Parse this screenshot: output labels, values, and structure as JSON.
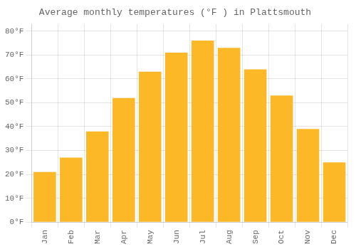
{
  "chart_data": {
    "type": "bar",
    "title": "Average monthly temperatures (°F ) in Plattsmouth",
    "categories": [
      "Jan",
      "Feb",
      "Mar",
      "Apr",
      "May",
      "Jun",
      "Jul",
      "Aug",
      "Sep",
      "Oct",
      "Nov",
      "Dec"
    ],
    "values": [
      21,
      27,
      38,
      52,
      63,
      71,
      76,
      73,
      64,
      53,
      39,
      25
    ],
    "color": "#FDB827",
    "ylim": [
      0,
      83
    ],
    "yticks": [
      {
        "value": 0,
        "label": "0°F"
      },
      {
        "value": 10,
        "label": "10°F"
      },
      {
        "value": 20,
        "label": "20°F"
      },
      {
        "value": 30,
        "label": "30°F"
      },
      {
        "value": 40,
        "label": "40°F"
      },
      {
        "value": 50,
        "label": "50°F"
      },
      {
        "value": 60,
        "label": "60°F"
      },
      {
        "value": 70,
        "label": "70°F"
      },
      {
        "value": 80,
        "label": "80°F"
      }
    ],
    "grid": true
  }
}
